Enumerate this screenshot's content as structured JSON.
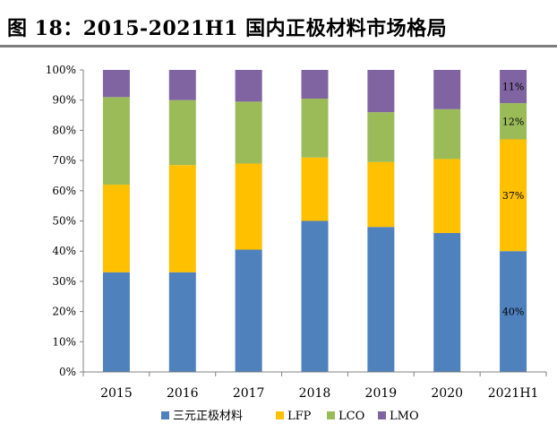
{
  "title": "图 18：2015-2021H1 国内正极材料市场格局",
  "chart_data": {
    "type": "bar",
    "stacked": true,
    "categories": [
      "2015",
      "2016",
      "2017",
      "2018",
      "2019",
      "2020",
      "2021H1"
    ],
    "series": [
      {
        "name": "三元正极材料",
        "color": "#4F81BD",
        "values": [
          33,
          33,
          40.5,
          50,
          48,
          46,
          40
        ]
      },
      {
        "name": "LFP",
        "color": "#FFC000",
        "values": [
          29,
          35.5,
          28.5,
          21,
          21.5,
          24.5,
          37
        ]
      },
      {
        "name": "LCO",
        "color": "#9BBB59",
        "values": [
          29,
          21.5,
          20.5,
          19.5,
          16.5,
          16.5,
          12
        ]
      },
      {
        "name": "LMO",
        "color": "#8064A2",
        "values": [
          9,
          10,
          10.5,
          9.5,
          14,
          13,
          11
        ]
      }
    ],
    "data_labels": [
      {
        "category": "2021H1",
        "series": "三元正极材料",
        "text": "40%"
      },
      {
        "category": "2021H1",
        "series": "LFP",
        "text": "37%"
      },
      {
        "category": "2021H1",
        "series": "LCO",
        "text": "12%"
      },
      {
        "category": "2021H1",
        "series": "LMO",
        "text": "11%"
      }
    ],
    "y_ticks": [
      "0%",
      "10%",
      "20%",
      "30%",
      "40%",
      "50%",
      "60%",
      "70%",
      "80%",
      "90%",
      "100%"
    ],
    "ylim": [
      0,
      100
    ],
    "grid": false,
    "legend_position": "bottom"
  }
}
